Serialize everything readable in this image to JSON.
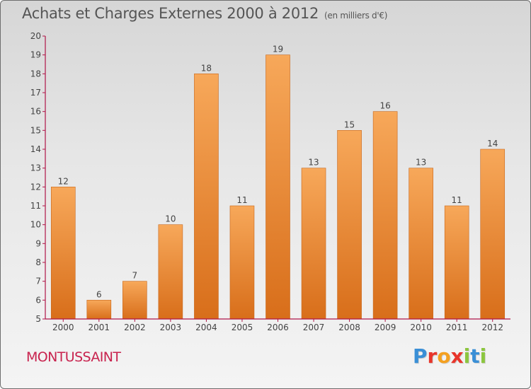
{
  "title": "Achats et Charges Externes 2000 à 2012",
  "unit_label": "(en milliers d'€)",
  "commune": "MONTUSSAINT",
  "logo": {
    "text": "Proxiti",
    "letters": [
      "P",
      "r",
      "o",
      "x",
      "i",
      "t",
      "i"
    ],
    "colors": [
      "#3a8fd6",
      "#e8352b",
      "#f4a020",
      "#e8352b",
      "#8cc63f",
      "#3a8fd6",
      "#8cc63f"
    ]
  },
  "colors": {
    "bar_top": "#f7a85a",
    "bar_bottom": "#d86e1a",
    "axis": "#b01548",
    "commune": "#c8234e"
  },
  "chart_data": {
    "type": "bar",
    "categories": [
      "2000",
      "2001",
      "2002",
      "2003",
      "2004",
      "2005",
      "2006",
      "2007",
      "2008",
      "2009",
      "2010",
      "2011",
      "2012"
    ],
    "values": [
      12,
      6,
      7,
      10,
      18,
      11,
      19,
      13,
      15,
      16,
      13,
      11,
      14
    ],
    "ylim": [
      5,
      20
    ],
    "yticks": [
      5,
      6,
      7,
      8,
      9,
      10,
      11,
      12,
      13,
      14,
      15,
      16,
      17,
      18,
      19,
      20
    ],
    "title": "Achats et Charges Externes 2000 à 2012",
    "grid": false,
    "legend": "none"
  }
}
